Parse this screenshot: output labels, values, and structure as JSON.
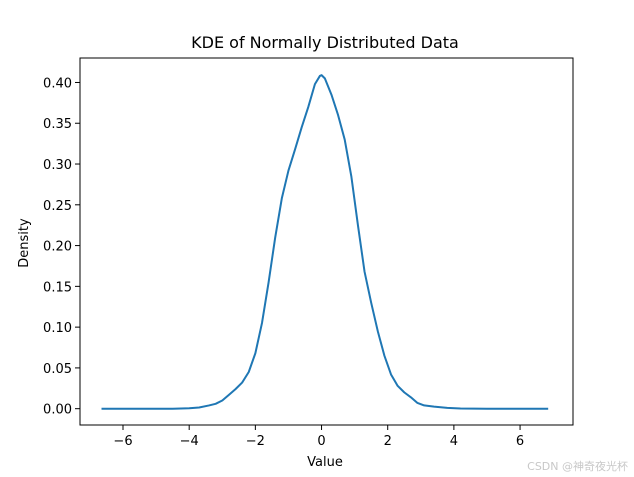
{
  "chart_data": {
    "type": "line",
    "title": "KDE of Normally Distributed Data",
    "xlabel": "Value",
    "ylabel": "Density",
    "xlim": [
      -7.3,
      7.6
    ],
    "ylim": [
      -0.02,
      0.43
    ],
    "xticks": [
      -6,
      -4,
      -2,
      0,
      2,
      4,
      6
    ],
    "xtick_labels": [
      "−6",
      "−4",
      "−2",
      "0",
      "2",
      "4",
      "6"
    ],
    "yticks": [
      0.0,
      0.05,
      0.1,
      0.15,
      0.2,
      0.25,
      0.3,
      0.35,
      0.4
    ],
    "ytick_labels": [
      "0.00",
      "0.05",
      "0.10",
      "0.15",
      "0.20",
      "0.25",
      "0.30",
      "0.35",
      "0.40"
    ],
    "grid": false,
    "series": [
      {
        "color": "#1f77b4",
        "x": [
          -6.65,
          -6.0,
          -5.0,
          -4.5,
          -4.0,
          -3.7,
          -3.4,
          -3.2,
          -3.0,
          -2.8,
          -2.6,
          -2.4,
          -2.2,
          -2.0,
          -1.8,
          -1.6,
          -1.4,
          -1.2,
          -1.0,
          -0.8,
          -0.6,
          -0.4,
          -0.2,
          -0.05,
          0.0,
          0.1,
          0.3,
          0.5,
          0.7,
          0.9,
          1.1,
          1.3,
          1.5,
          1.7,
          1.9,
          2.1,
          2.3,
          2.5,
          2.7,
          2.9,
          3.1,
          3.4,
          3.8,
          4.2,
          5.0,
          6.0,
          6.85
        ],
        "y": [
          0.0,
          0.0,
          0.0,
          0.0,
          0.0005,
          0.0015,
          0.004,
          0.006,
          0.01,
          0.017,
          0.024,
          0.032,
          0.045,
          0.068,
          0.105,
          0.155,
          0.21,
          0.258,
          0.292,
          0.318,
          0.345,
          0.37,
          0.398,
          0.408,
          0.409,
          0.405,
          0.385,
          0.36,
          0.33,
          0.285,
          0.225,
          0.168,
          0.13,
          0.095,
          0.065,
          0.042,
          0.028,
          0.02,
          0.014,
          0.007,
          0.004,
          0.0025,
          0.001,
          0.0003,
          0.0,
          0.0,
          0.0
        ]
      }
    ]
  },
  "watermark": "CSDN @神奇夜光杯"
}
